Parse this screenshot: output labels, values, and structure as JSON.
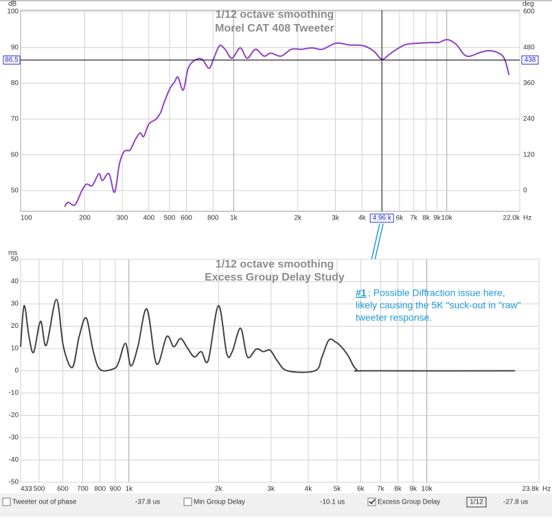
{
  "chart_data": [
    {
      "type": "line",
      "title": "1/12 octave smoothing",
      "subtitle": "Morel   CAT 408 Tweeter",
      "y_unit": "dB",
      "y2_unit": "deg",
      "x_unit": "Hz",
      "log_x": true,
      "grid": true,
      "xlim": [
        100,
        22000
      ],
      "ylim": [
        44.2,
        100.4
      ],
      "y2lim": [
        -69.6,
        604.8
      ],
      "xticks": [
        100,
        200,
        300,
        400,
        500,
        600,
        800,
        {
          "value": 1000,
          "label": "1k"
        },
        {
          "value": 2000,
          "label": "2k"
        },
        {
          "value": 3000,
          "label": "3k"
        },
        {
          "value": 4000,
          "label": "4k"
        },
        {
          "value": 6000,
          "label": "6k"
        },
        {
          "value": 7000,
          "label": "7k"
        },
        {
          "value": 8000,
          "label": "8k"
        },
        {
          "value": 9000,
          "label": "9k"
        },
        {
          "value": 10000,
          "label": "10k"
        },
        {
          "value": 22000,
          "label": "22.0k"
        }
      ],
      "yticks": [
        100,
        90,
        80,
        70,
        60,
        50
      ],
      "y2ticks": [
        600,
        480,
        360,
        240,
        120,
        0
      ],
      "cursor": {
        "x": {
          "value": 4960,
          "label": "4.96 k"
        },
        "y": 86.5,
        "y2": 438
      },
      "x": [
        161,
        167,
        180,
        194,
        204,
        217,
        233,
        242,
        260,
        276,
        291,
        307,
        326,
        345,
        364,
        378,
        400,
        431,
        454,
        472,
        502,
        528,
        548,
        580,
        612,
        660,
        711,
        766,
        807,
        858,
        911,
        981,
        1073,
        1156,
        1265,
        1386,
        1494,
        1669,
        1866,
        2085,
        2330,
        2604,
        3020,
        3500,
        4063,
        4544,
        4966,
        5462,
        6336,
        7346,
        8518,
        9170,
        10050,
        11060,
        12370,
        14340,
        15670,
        17260,
        18600,
        19600
      ],
      "series": [
        {
          "color": "#8e3fc2",
          "values": [
            45.5,
            46.7,
            46,
            50,
            51.8,
            51.4,
            54.7,
            52.8,
            54.7,
            49.5,
            57.5,
            61,
            61.3,
            64.2,
            66.1,
            65.1,
            68.6,
            69.9,
            71.8,
            74.7,
            78.5,
            80.4,
            81.7,
            78.1,
            84.2,
            86.5,
            86.7,
            84.2,
            87,
            90.5,
            89.5,
            87,
            89.9,
            87,
            89.5,
            87.6,
            88.4,
            87.6,
            89.5,
            89.5,
            89.9,
            89.5,
            91.2,
            90.7,
            90.5,
            89,
            86.7,
            88.4,
            90.7,
            91.2,
            91.4,
            91.4,
            92.2,
            90.9,
            87.6,
            88.6,
            89.1,
            88.6,
            87,
            82.3
          ]
        }
      ]
    },
    {
      "type": "line",
      "title": "1/12 octave smoothing",
      "subtitle": "Excess Group Delay Study",
      "y_unit": "ms",
      "x_unit": "Hz",
      "log_x": true,
      "grid": true,
      "xlim": [
        433,
        23800
      ],
      "ylim": [
        -50,
        50
      ],
      "xticks": [
        433,
        500,
        600,
        700,
        800,
        900,
        {
          "value": 1000,
          "label": "1k"
        },
        {
          "value": 2000,
          "label": "2k"
        },
        {
          "value": 3000,
          "label": "3k"
        },
        {
          "value": 4000,
          "label": "4k"
        },
        {
          "value": 5000,
          "label": "5k"
        },
        {
          "value": 6000,
          "label": "6k"
        },
        {
          "value": 7000,
          "label": "7k"
        },
        {
          "value": 8000,
          "label": "8k"
        },
        {
          "value": 9000,
          "label": "9k"
        },
        {
          "value": 10000,
          "label": "10k"
        },
        {
          "value": 23800,
          "label": "23.8k"
        }
      ],
      "yticks": [
        50,
        40,
        30,
        20,
        10,
        0,
        -10,
        -20,
        -30,
        -40,
        -50
      ],
      "x": [
        433,
        445,
        462,
        479,
        505,
        528,
        571,
        603,
        646,
        681,
        719,
        758,
        800,
        889,
        923,
        974,
        1016,
        1072,
        1149,
        1238,
        1340,
        1414,
        1491,
        1573,
        1659,
        1750,
        1846,
        1998,
        2131,
        2223,
        2371,
        2500,
        2680,
        2827,
        2982,
        3145,
        3408,
        4217,
        4447,
        4691,
        4948,
        5163,
        5445,
        5804,
        6451,
        19780
      ],
      "series": [
        {
          "color": "#404040",
          "values": [
            10.8,
            29.2,
            15.4,
            8.3,
            22.2,
            11.4,
            32,
            10.8,
            1.5,
            15.4,
            23.7,
            9.2,
            0.6,
            0.9,
            3.7,
            12.3,
            2.2,
            10.8,
            27.7,
            3.1,
            15.4,
            10.8,
            14.5,
            10.2,
            6.2,
            8.6,
            4.6,
            29.2,
            7.7,
            8.6,
            19.1,
            6.2,
            9.8,
            8.6,
            9.2,
            4.6,
            0,
            0,
            6.2,
            13.8,
            12.9,
            10.8,
            6.8,
            0.6,
            0,
            0
          ]
        }
      ],
      "annotation": {
        "label": "#1",
        "lines": [
          "; Possible Diffraction issue here,",
          "likely causing the 5K \"suck-out in \"raw\"",
          "tweeter response."
        ]
      }
    }
  ],
  "status_bar": [
    {
      "label": "Tweeter out of phase",
      "reading": "-37.8 us",
      "checked": false
    },
    {
      "label": "Min Group Delay",
      "reading": "-10.1 us",
      "checked": false
    },
    {
      "label": "Excess Group Delay",
      "reading": "-27.8 us",
      "checked": true
    }
  ],
  "smoothing_icon": "1/12"
}
